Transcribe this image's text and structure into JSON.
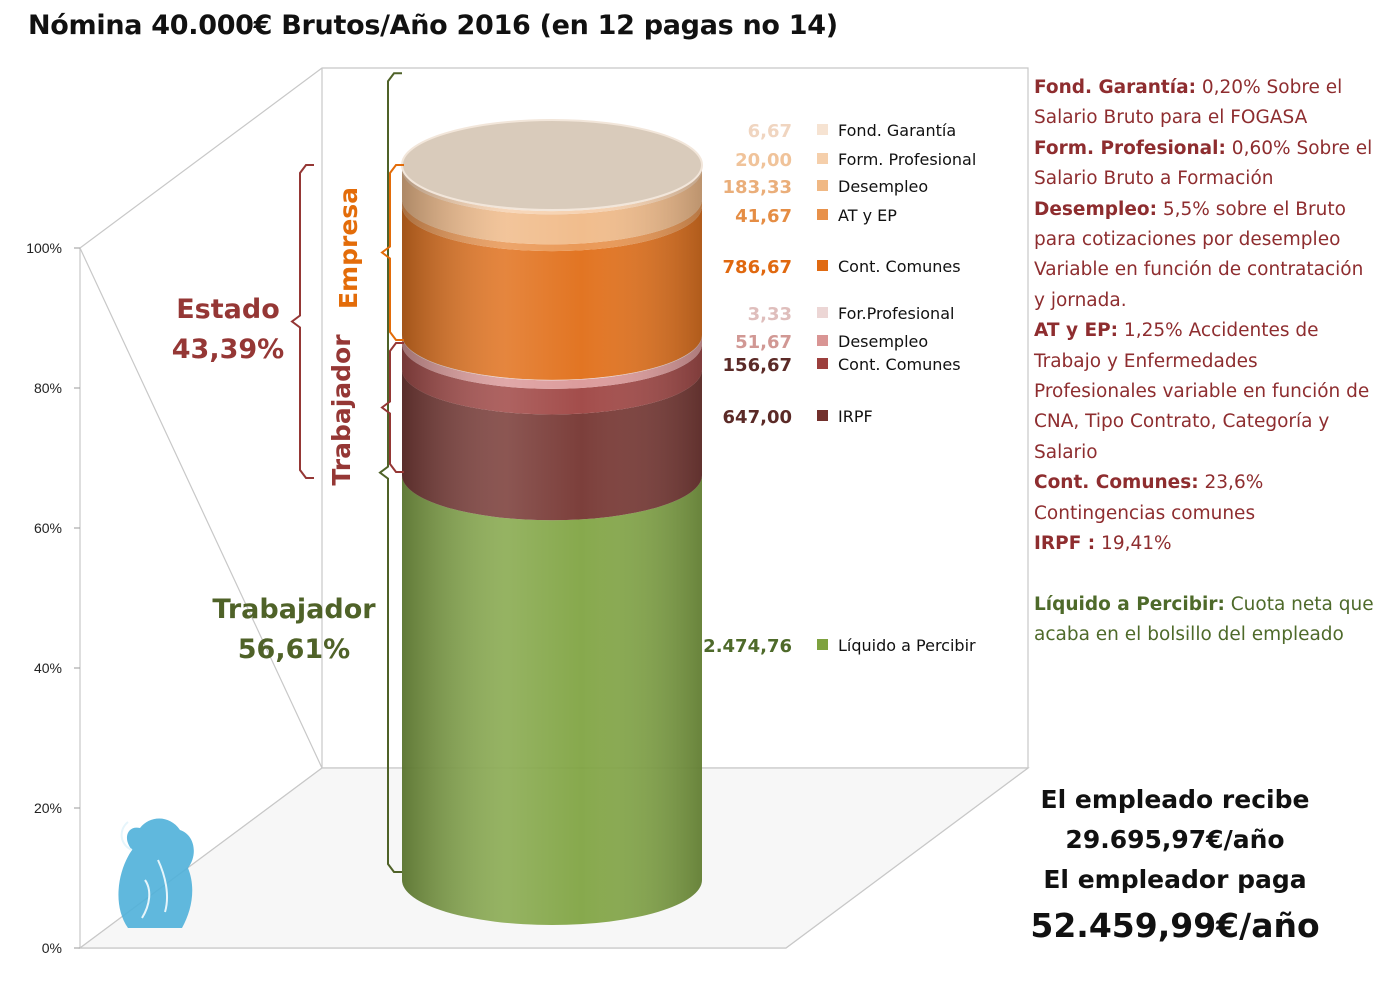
{
  "title": "Nómina 40.000€ Brutos/Año 2016 (en 12 pagas no 14)",
  "chart_data": {
    "type": "bar",
    "subtype": "stacked-100-3d-cylinder",
    "y_ticks": [
      "0%",
      "20%",
      "40%",
      "60%",
      "80%",
      "100%"
    ],
    "ylim": [
      0,
      100
    ],
    "segments": [
      {
        "value_label": "2.474,76",
        "value": 2474.76,
        "name": "Líquido a Percibir",
        "color": "#7ea23f"
      },
      {
        "value_label": "647,00",
        "value": 647.0,
        "name": "IRPF",
        "color": "#72302c"
      },
      {
        "value_label": "156,67",
        "value": 156.67,
        "name": "Cont. Comunes",
        "color": "#9c3f3d"
      },
      {
        "value_label": "51,67",
        "value": 51.67,
        "name": "Desempleo",
        "color": "#d99594"
      },
      {
        "value_label": "3,33",
        "value": 3.33,
        "name": "For.Profesional",
        "color": "#ecd6d5"
      },
      {
        "value_label": "786,67",
        "value": 786.67,
        "name": "Cont. Comunes",
        "color": "#e06a12"
      },
      {
        "value_label": "41,67",
        "value": 41.67,
        "name": "AT y EP",
        "color": "#e8914a"
      },
      {
        "value_label": "183,33",
        "value": 183.33,
        "name": "Desempleo",
        "color": "#f0b884"
      },
      {
        "value_label": "20,00",
        "value": 20.0,
        "name": "Form. Profesional",
        "color": "#f5cfab"
      },
      {
        "value_label": "6,67",
        "value": 6.67,
        "name": "Fond. Garantía",
        "color": "#f6e3d2"
      }
    ],
    "groups": {
      "estado": {
        "label": "Estado",
        "pct": "43,39%",
        "color": "#953735"
      },
      "trabajador_main": {
        "label": "Trabajador",
        "pct": "56,61%",
        "color": "#4f6228"
      },
      "empresa": {
        "label": "Empresa",
        "color": "#e36c09"
      },
      "trabajador_sub": {
        "label": "Trabajador",
        "color": "#953735"
      }
    }
  },
  "notes": [
    {
      "term": "Fond. Garantía:",
      "text": " 0,20% Sobre el Salario Bruto para el FOGASA"
    },
    {
      "term": "Form. Profesional:",
      "text": " 0,60% Sobre el Salario Bruto a Formación"
    },
    {
      "term": "Desempleo:",
      "text": " 5,5% sobre el Bruto para cotizaciones por desempleo Variable en función de contratación y jornada."
    },
    {
      "term": "AT y EP:",
      "text": " 1,25% Accidentes de Trabajo y Enfermedades Profesionales variable en función de CNA, Tipo Contrato, Categoría y Salario"
    },
    {
      "term": "Cont. Comunes:",
      "text": " 23,6% Contingencias comunes"
    },
    {
      "term": "IRPF :",
      "text": " 19,41%"
    }
  ],
  "liquido_note": {
    "term": "Líquido a Percibir:",
    "text": " Cuota neta que acaba en el bolsillo del empleado"
  },
  "summary": {
    "line1": "El empleado recibe",
    "line2": "29.695,97€/año",
    "line3": "El empleador paga",
    "line4": "52.459,99€/año"
  },
  "colors": {
    "estado": "#953735",
    "trabajador": "#4f6228",
    "empresa": "#e36c09",
    "notes_text": "#8e2d2f"
  }
}
